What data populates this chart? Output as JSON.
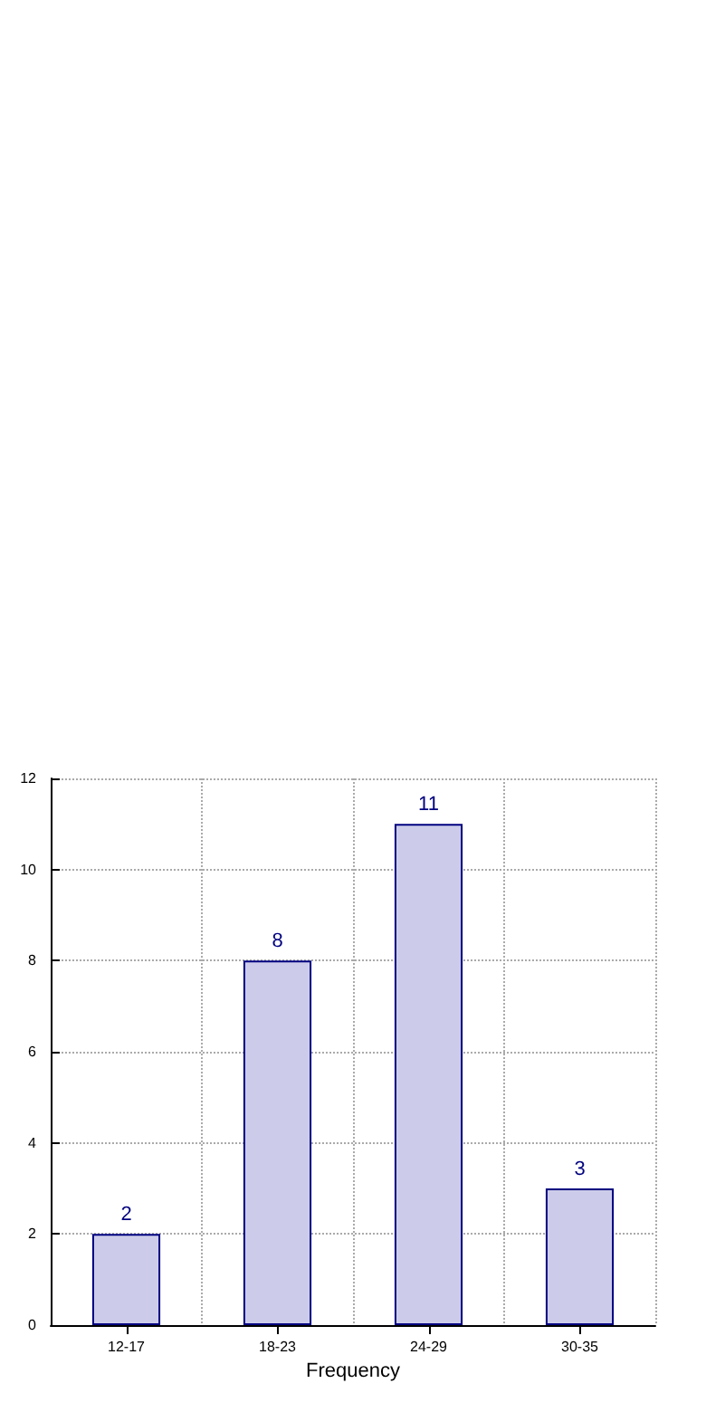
{
  "chart_data": {
    "type": "bar",
    "xlabel": "Frequency",
    "categories": [
      "12-17",
      "18-23",
      "24-29",
      "30-35"
    ],
    "values": [
      2,
      8,
      11,
      3
    ],
    "color": "#ccccea",
    "ylim": [
      0,
      12
    ],
    "yticks": [
      0,
      2,
      4,
      6,
      8,
      10,
      12
    ],
    "grid": true,
    "data_labels": true
  }
}
